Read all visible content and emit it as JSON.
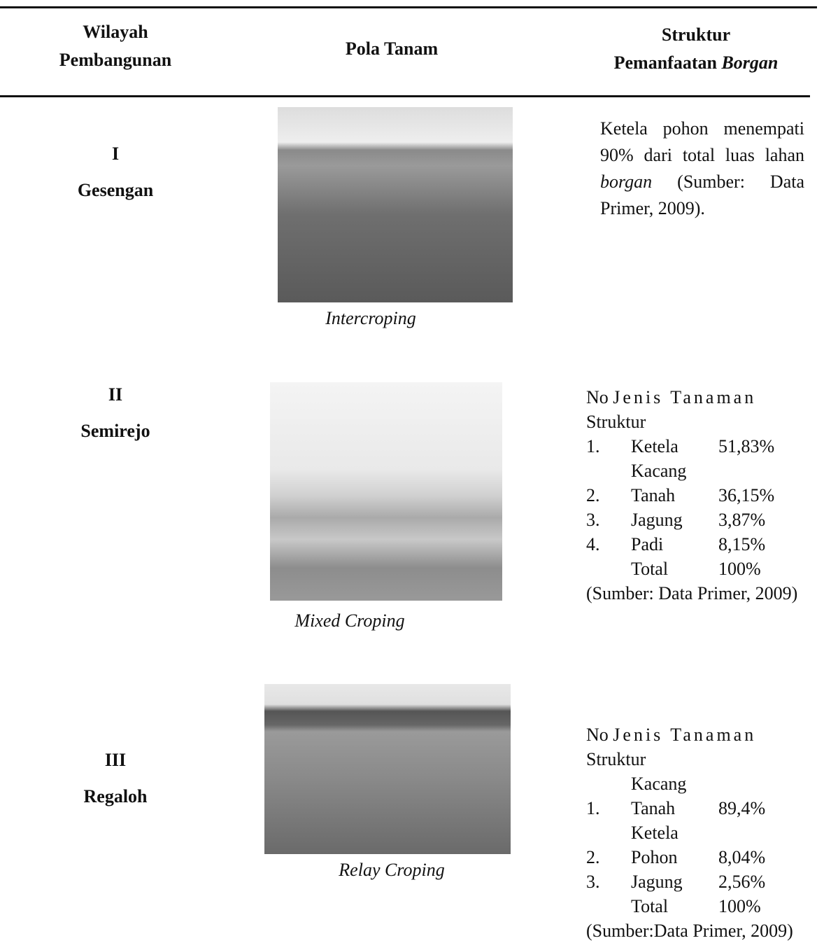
{
  "header": {
    "columns": [
      {
        "lines": [
          "Wilayah",
          "Pembangunan"
        ]
      },
      {
        "lines": [
          "Pola Tanam"
        ]
      },
      {
        "lines": [
          "Struktur"
        ],
        "last_line": {
          "text": "Pemanfaatan",
          "italic": "Borgan"
        }
      }
    ]
  },
  "rows": [
    {
      "numeral": "I",
      "region": "Gesengan",
      "caption": "Intercroping",
      "description": {
        "before": "Ketela pohon menempati 90% dari total luas lahan",
        "italic": "borgan",
        "after": "(Sumber: Data Primer, 2009)."
      }
    },
    {
      "numeral": "II",
      "region": "Semirejo",
      "caption": "Mixed Croping",
      "structure": {
        "head": [
          "No",
          "Jenis Tanaman",
          "Struktur"
        ],
        "items": [
          [
            "1.",
            "Ketela",
            "51,83%"
          ],
          [
            "2.",
            "Kacang Tanah",
            "36,15%"
          ],
          [
            "3.",
            "Jagung",
            "3,87%"
          ],
          [
            "4.",
            "Padi",
            "8,15%"
          ]
        ],
        "total": [
          "Total",
          "100%"
        ],
        "source": "(Sumber: Data Primer, 2009)"
      }
    },
    {
      "numeral": "III",
      "region": "Regaloh",
      "caption": "Relay Croping",
      "structure": {
        "head": [
          "No",
          "Jenis Tanaman",
          "Struktur"
        ],
        "items": [
          [
            "1.",
            "Kacang Tanah",
            "89,4%"
          ],
          [
            "2.",
            "Ketela Pohon",
            "8,04%"
          ],
          [
            "3.",
            "Jagung",
            "2,56%"
          ]
        ],
        "total": [
          "Total",
          "100%"
        ],
        "source": "(Sumber:Data Primer, 2009)"
      }
    }
  ]
}
